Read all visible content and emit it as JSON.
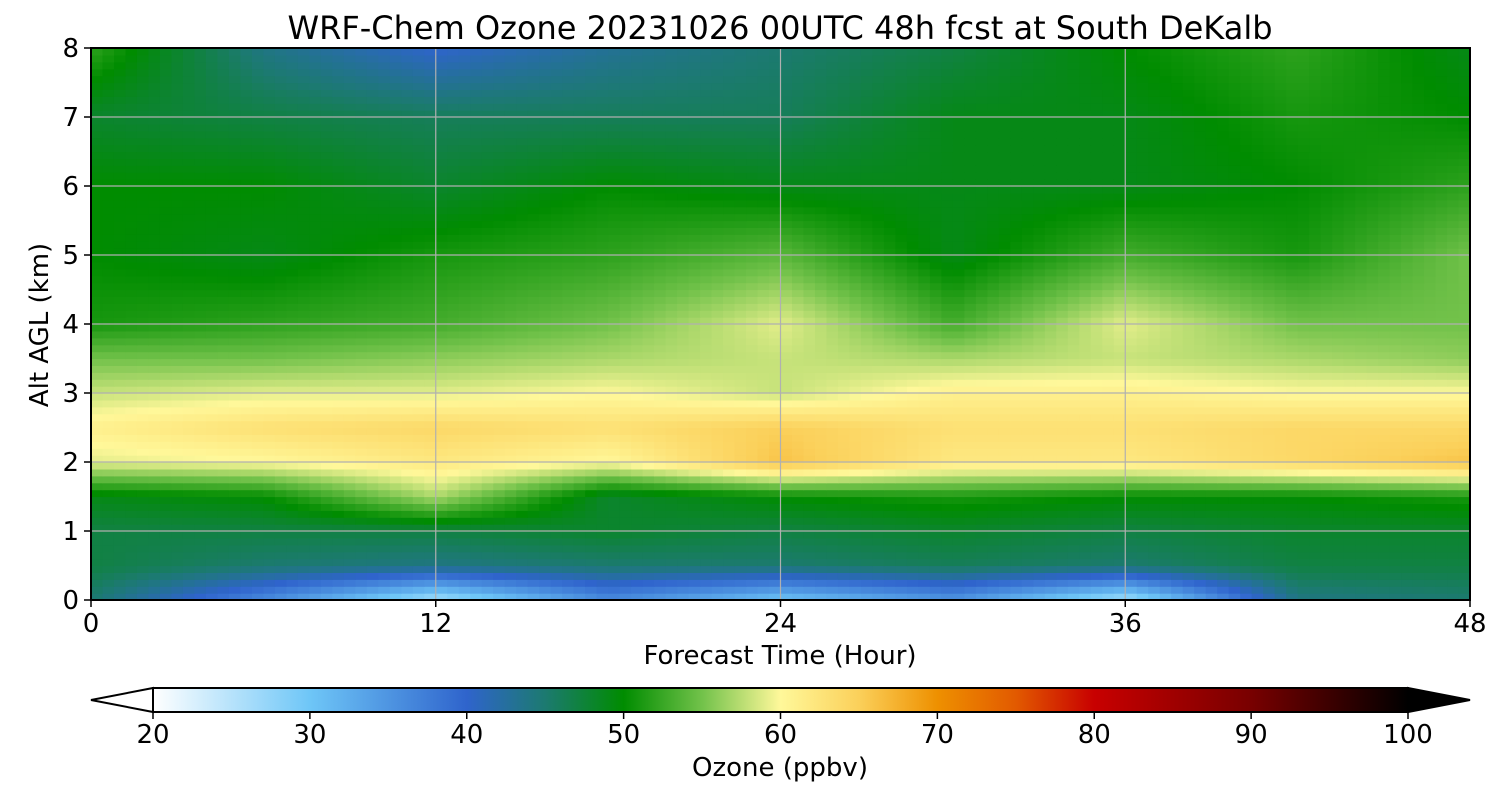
{
  "chart_data": {
    "type": "heatmap",
    "title": "WRF-Chem Ozone  20231026 00UTC 48h fcst at South DeKalb",
    "xlabel": "Forecast Time (Hour)",
    "ylabel": "Alt AGL (km)",
    "xlim": [
      0,
      48
    ],
    "ylim": [
      0,
      8
    ],
    "x_ticks": [
      0,
      12,
      24,
      36,
      48
    ],
    "y_ticks": [
      0,
      1,
      2,
      3,
      4,
      5,
      6,
      7,
      8
    ],
    "grid": true,
    "x": [
      0,
      6,
      12,
      18,
      24,
      30,
      36,
      42,
      48
    ],
    "y": [
      0,
      0.5,
      1,
      1.5,
      2,
      2.5,
      3,
      3.5,
      4,
      5,
      6,
      7,
      8
    ],
    "z": [
      [
        45,
        36,
        26,
        36,
        30,
        35,
        26,
        44,
        45
      ],
      [
        47,
        45,
        44,
        45,
        45,
        46,
        45,
        47,
        47
      ],
      [
        47,
        47,
        47,
        48,
        47,
        48,
        47,
        48,
        48
      ],
      [
        49,
        50,
        57,
        48,
        50,
        51,
        50,
        50,
        51
      ],
      [
        59,
        60,
        62,
        60,
        66,
        62,
        62,
        64,
        66
      ],
      [
        61,
        63,
        64,
        63,
        65,
        63,
        63,
        64,
        64
      ],
      [
        58,
        59,
        59,
        60,
        58,
        61,
        61,
        60,
        60
      ],
      [
        55,
        55,
        56,
        57,
        58,
        57,
        58,
        57,
        56
      ],
      [
        51,
        52,
        53,
        55,
        59,
        53,
        59,
        55,
        55
      ],
      [
        50,
        49,
        51,
        52,
        54,
        49,
        53,
        51,
        55
      ],
      [
        50,
        50,
        48,
        50,
        49,
        49,
        49,
        50,
        52
      ],
      [
        48,
        47,
        46,
        46,
        46,
        49,
        49,
        51,
        50
      ],
      [
        52,
        44,
        40,
        43,
        45,
        47,
        50,
        52,
        49
      ]
    ],
    "colorbar": {
      "label": "Ozone  (ppbv)",
      "min": 20,
      "max": 100,
      "ticks": [
        20,
        30,
        40,
        50,
        60,
        70,
        80,
        90,
        100
      ],
      "extend": "both",
      "stops": [
        {
          "value": 20,
          "color": "#ffffff"
        },
        {
          "value": 30,
          "color": "#6ec6f7"
        },
        {
          "value": 40,
          "color": "#2f64cc"
        },
        {
          "value": 45,
          "color": "#1c7a70"
        },
        {
          "value": 50,
          "color": "#008c00"
        },
        {
          "value": 55,
          "color": "#72c24a"
        },
        {
          "value": 60,
          "color": "#fff89a"
        },
        {
          "value": 65,
          "color": "#fbd05a"
        },
        {
          "value": 70,
          "color": "#ee9000"
        },
        {
          "value": 75,
          "color": "#e25a00"
        },
        {
          "value": 80,
          "color": "#c80000"
        },
        {
          "value": 90,
          "color": "#780000"
        },
        {
          "value": 100,
          "color": "#000000"
        }
      ]
    }
  }
}
